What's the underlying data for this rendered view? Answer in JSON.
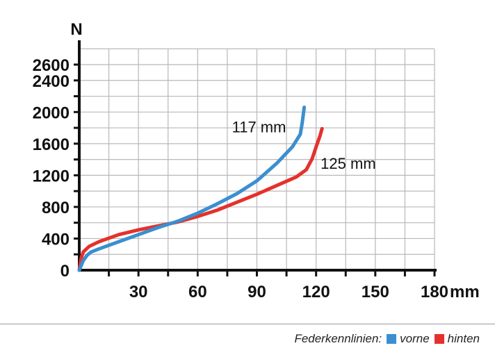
{
  "chart_data": {
    "type": "line",
    "ylabel": "N",
    "xlabel": "mm",
    "xlim": [
      0,
      180
    ],
    "ylim": [
      0,
      2600
    ],
    "yticks": [
      0,
      400,
      800,
      1200,
      1600,
      2000,
      2400,
      2600
    ],
    "xticks": [
      30,
      60,
      90,
      120,
      150,
      180
    ],
    "grid": true,
    "series": [
      {
        "name": "vorne",
        "color": "#3a8fd0",
        "x": [
          0,
          2,
          4,
          6,
          10,
          20,
          30,
          40,
          50,
          60,
          70,
          80,
          90,
          100,
          108,
          112,
          113,
          114
        ],
        "y": [
          0,
          120,
          190,
          230,
          270,
          360,
          450,
          540,
          620,
          720,
          840,
          970,
          1130,
          1350,
          1560,
          1720,
          1870,
          2060
        ],
        "annotation": "117 mm"
      },
      {
        "name": "hinten",
        "color": "#e5312b",
        "x": [
          0,
          1,
          2,
          5,
          10,
          20,
          30,
          40,
          50,
          60,
          70,
          80,
          90,
          100,
          110,
          115,
          118,
          120,
          122,
          123
        ],
        "y": [
          0,
          150,
          230,
          300,
          360,
          450,
          510,
          560,
          610,
          680,
          760,
          860,
          960,
          1070,
          1180,
          1270,
          1410,
          1560,
          1700,
          1790
        ],
        "annotation": "125 mm"
      }
    ]
  },
  "legend": {
    "label": "Federkennlinien:",
    "items": [
      {
        "name": "vorne",
        "color": "#3a8fd0"
      },
      {
        "name": "hinten",
        "color": "#e5312b"
      }
    ]
  }
}
